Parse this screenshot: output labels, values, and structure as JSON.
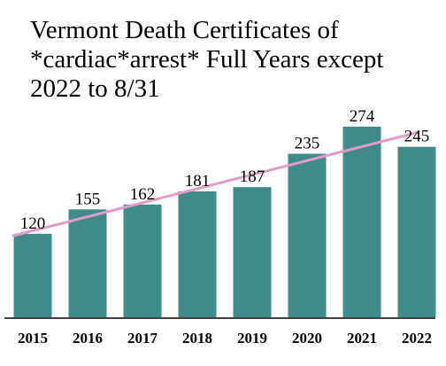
{
  "chart_data": {
    "type": "bar",
    "title_lines": [
      "Vermont Death Certificates of",
      "*cardiac*arrest* Full Years except",
      "2022 to 8/31"
    ],
    "categories": [
      "2015",
      "2016",
      "2017",
      "2018",
      "2019",
      "2020",
      "2021",
      "2022"
    ],
    "series": [
      {
        "values": [
          120,
          155,
          162,
          181,
          187,
          235,
          274,
          245
        ]
      }
    ],
    "trendline": {
      "type": "linear",
      "color": "#e59bc9"
    },
    "xlabel": "",
    "ylabel": "",
    "ylim": [
      0,
      300
    ],
    "grid": false,
    "legend": "none",
    "bar_color": "#3e8b8a",
    "axis_color": "#000000"
  }
}
